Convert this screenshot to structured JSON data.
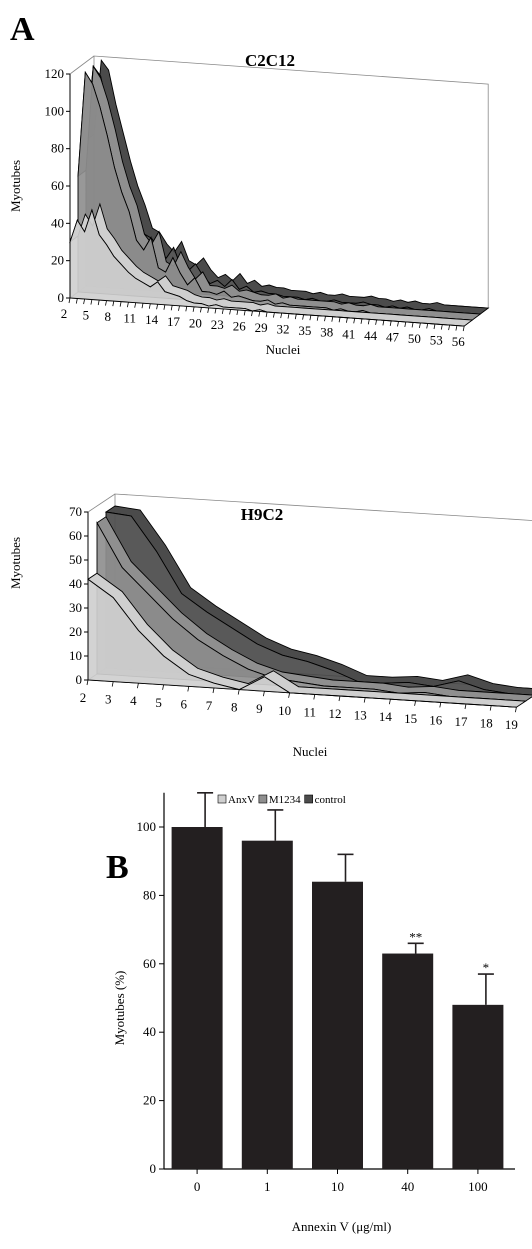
{
  "panels": {
    "a": "A",
    "b": "B"
  },
  "legend": {
    "items": [
      {
        "label": "AnxV",
        "color": "#cfcfcf"
      },
      {
        "label": "M1234",
        "color": "#8f8f8f"
      },
      {
        "label": "control",
        "color": "#4b4b4b"
      }
    ]
  },
  "chart_data": [
    {
      "type": "area",
      "subtype": "3d-ribbon",
      "title": "C2C12",
      "xlabel": "Nuclei",
      "ylabel": "Myotubes",
      "ylim": [
        0,
        120
      ],
      "yticks": [
        0,
        20,
        40,
        60,
        80,
        100,
        120
      ],
      "x": [
        2,
        3,
        4,
        5,
        6,
        7,
        8,
        9,
        10,
        11,
        12,
        13,
        14,
        15,
        16,
        17,
        18,
        19,
        20,
        21,
        22,
        23,
        24,
        25,
        26,
        27,
        28,
        29,
        30,
        31,
        32,
        33,
        34,
        35,
        36,
        37,
        38,
        39,
        40,
        41,
        42,
        43,
        44,
        45,
        46,
        47,
        48,
        49,
        50,
        51,
        52,
        53,
        54,
        55,
        56
      ],
      "xtick_labels": [
        "2",
        "5",
        "8",
        "11",
        "14",
        "17",
        "20",
        "23",
        "26",
        "29",
        "32",
        "35",
        "38",
        "41",
        "44",
        "47",
        "50",
        "53",
        "56"
      ],
      "series": [
        {
          "name": "AnxV",
          "values": [
            30,
            42,
            36,
            48,
            35,
            30,
            24,
            20,
            16,
            13,
            11,
            9,
            12,
            7,
            6,
            5,
            3,
            2,
            2,
            1,
            2,
            1,
            1,
            1,
            1,
            0,
            1,
            0,
            0,
            0,
            0,
            0,
            0,
            0,
            0,
            0,
            0,
            0,
            0,
            0,
            0,
            0,
            0,
            0,
            0,
            0,
            0,
            0,
            0,
            0,
            0,
            0,
            0,
            0,
            0
          ]
        },
        {
          "name": "M1234",
          "values": [
            62,
            118,
            112,
            100,
            85,
            68,
            55,
            45,
            30,
            25,
            32,
            16,
            14,
            22,
            14,
            8,
            12,
            5,
            5,
            4,
            6,
            3,
            4,
            3,
            2,
            2,
            3,
            1,
            2,
            1,
            1,
            1,
            1,
            1,
            1,
            0,
            1,
            0,
            0,
            1,
            0,
            0,
            0,
            0,
            0,
            0,
            0,
            0,
            0,
            0,
            0,
            0,
            0,
            0,
            0
          ]
        },
        {
          "name": "control",
          "values": [
            78,
            118,
            113,
            95,
            80,
            65,
            52,
            42,
            30,
            28,
            22,
            18,
            24,
            14,
            12,
            16,
            10,
            6,
            8,
            5,
            9,
            4,
            6,
            3,
            4,
            3,
            3,
            2,
            2,
            2,
            1,
            2,
            1,
            1,
            2,
            1,
            1,
            1,
            2,
            1,
            1,
            0,
            1,
            0,
            1,
            0,
            0,
            1,
            0,
            0,
            0,
            0,
            0,
            0,
            0
          ]
        }
      ]
    },
    {
      "type": "area",
      "subtype": "3d-ribbon",
      "title": "H9C2",
      "xlabel": "Nuclei",
      "ylabel": "Myotubes",
      "ylim": [
        0,
        70
      ],
      "yticks": [
        0,
        10,
        20,
        30,
        40,
        50,
        60,
        70
      ],
      "x": [
        2,
        3,
        4,
        5,
        6,
        7,
        8,
        9,
        10,
        11,
        12,
        13,
        14,
        15,
        16,
        17,
        18,
        19
      ],
      "xtick_labels": [
        "2",
        "3",
        "4",
        "5",
        "6",
        "7",
        "8",
        "9",
        "10",
        "11",
        "12",
        "13",
        "14",
        "15",
        "16",
        "17",
        "18",
        "19"
      ],
      "series": [
        {
          "name": "AnxV",
          "values": [
            42,
            35,
            22,
            12,
            5,
            2,
            0,
            6,
            0,
            0,
            0,
            0,
            0,
            0,
            0,
            0,
            0,
            0
          ]
        },
        {
          "name": "M1234",
          "values": [
            63,
            45,
            35,
            25,
            17,
            11,
            6,
            3,
            2,
            1,
            1,
            1,
            0,
            1,
            0,
            0,
            0,
            0
          ]
        },
        {
          "name": "control",
          "values": [
            65,
            64,
            50,
            33,
            26,
            20,
            14,
            10,
            8,
            5,
            1,
            1,
            2,
            1,
            4,
            1,
            0,
            0
          ]
        }
      ]
    },
    {
      "type": "bar",
      "xlabel": "Annexin V (μg/ml)",
      "ylabel": "Myotubes (%)",
      "ylim": [
        0,
        110
      ],
      "yticks": [
        0,
        20,
        40,
        60,
        80,
        100
      ],
      "categories": [
        "0",
        "1",
        "10",
        "40",
        "100"
      ],
      "values": [
        100,
        96,
        84,
        63,
        48
      ],
      "errors": [
        10,
        9,
        8,
        3,
        9
      ],
      "annotations": [
        "",
        "",
        "",
        "**",
        "*"
      ],
      "bar_color": "#231f20"
    }
  ]
}
